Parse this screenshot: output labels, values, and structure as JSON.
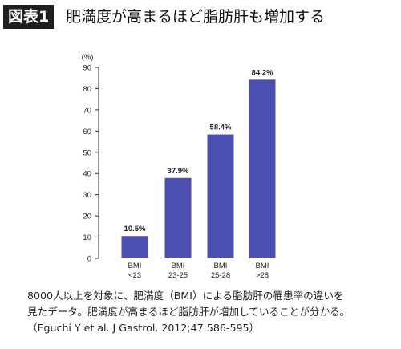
{
  "figure": {
    "label": "図表1",
    "title": "肥満度が高まるほど脂肪肝も増加する"
  },
  "chart_data": {
    "type": "bar",
    "title": "",
    "xlabel": "",
    "ylabel": "(%)",
    "categories": [
      "BMI\n<23",
      "BMI\n23-25",
      "BMI\n25-28",
      "BMI\n>28"
    ],
    "values": [
      10.5,
      37.9,
      58.4,
      84.2
    ],
    "data_labels": [
      "10.5%",
      "37.9%",
      "58.4%",
      "84.2%"
    ],
    "ylim": [
      0,
      90
    ],
    "yticks": [
      0,
      10,
      20,
      30,
      40,
      50,
      60,
      70,
      80,
      90
    ],
    "grid": false,
    "legend": "none",
    "bar_color": "#4a4fb0"
  },
  "caption": {
    "line1": "8000人以上を対象に、肥満度（BMI）による脂肪肝の罹患率の違いを",
    "line2": "見たデータ。肥満度が高まるほど脂肪肝が増加していることが分かる。",
    "line3": "（Eguchi Y et al. J Gastrol. 2012;47:586-595）"
  }
}
